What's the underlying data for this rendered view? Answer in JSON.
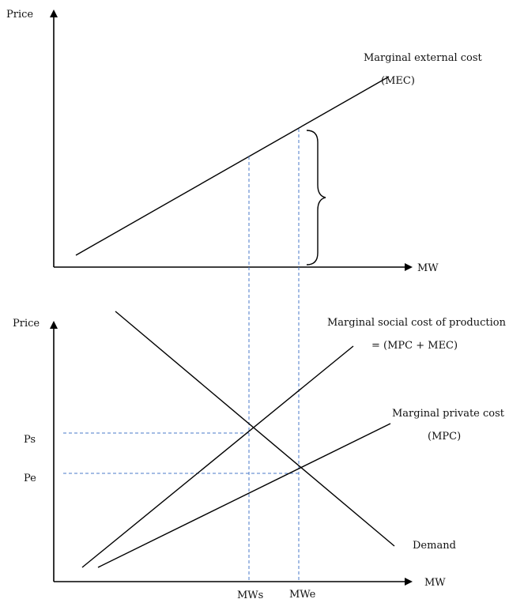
{
  "top_panel": {
    "y_axis_label": "Price",
    "x_axis_label": "MW",
    "mec_label_line1": "Marginal external cost",
    "mec_label_line2": "(MEC)"
  },
  "bottom_panel": {
    "y_axis_label": "Price",
    "x_axis_label": "MW",
    "msc_label_line1": "Marginal social cost of production",
    "msc_label_line2": "= (MPC + MEC)",
    "mpc_label_line1": "Marginal private cost",
    "mpc_label_line2": "(MPC)",
    "demand_label": "Demand",
    "price_ps": "Ps",
    "price_pe": "Pe",
    "quantity_mws": "MWs",
    "quantity_mwe": "MWe"
  },
  "colors": {
    "lines": "#000000",
    "guides": "#4a7ac8"
  }
}
